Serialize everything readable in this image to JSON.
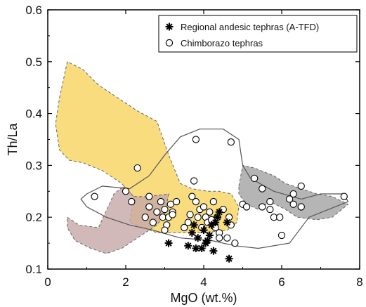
{
  "chart_data": {
    "type": "scatter",
    "title": "",
    "xlabel": "MgO (wt.%)",
    "ylabel": "Th/La",
    "xlim": [
      0,
      8
    ],
    "ylim": [
      0.1,
      0.6
    ],
    "xticks": [
      0,
      2,
      4,
      6,
      8
    ],
    "yticks": [
      0.1,
      0.2,
      0.3,
      0.4,
      0.5,
      0.6
    ],
    "grid": false,
    "legend_position": "top-right",
    "series": [
      {
        "name": "Regional andesic tephras (A-TFD)",
        "marker": "asterisk",
        "color": "#000000",
        "points": [
          [
            3.1,
            0.15
          ],
          [
            3.6,
            0.145
          ],
          [
            3.7,
            0.17
          ],
          [
            3.8,
            0.14
          ],
          [
            3.85,
            0.16
          ],
          [
            3.95,
            0.14
          ],
          [
            4.05,
            0.15
          ],
          [
            4.1,
            0.155
          ],
          [
            4.0,
            0.175
          ],
          [
            4.2,
            0.185
          ],
          [
            4.3,
            0.19
          ],
          [
            4.35,
            0.2
          ],
          [
            4.4,
            0.21
          ],
          [
            4.25,
            0.135
          ],
          [
            4.6,
            0.19
          ],
          [
            4.65,
            0.12
          ],
          [
            3.75,
            0.185
          ],
          [
            4.15,
            0.165
          ]
        ]
      },
      {
        "name": "Chimborazo tephras",
        "marker": "open-circle",
        "color": "#000000",
        "points": [
          [
            1.2,
            0.24
          ],
          [
            2.0,
            0.25
          ],
          [
            2.15,
            0.23
          ],
          [
            2.6,
            0.24
          ],
          [
            2.6,
            0.22
          ],
          [
            2.7,
            0.19
          ],
          [
            2.8,
            0.21
          ],
          [
            2.9,
            0.23
          ],
          [
            2.95,
            0.2
          ],
          [
            3.0,
            0.215
          ],
          [
            3.05,
            0.185
          ],
          [
            3.1,
            0.2
          ],
          [
            3.15,
            0.225
          ],
          [
            3.2,
            0.21
          ],
          [
            3.3,
            0.23
          ],
          [
            3.0,
            0.175
          ],
          [
            2.5,
            0.2
          ],
          [
            2.3,
            0.295
          ],
          [
            3.2,
            0.205
          ],
          [
            3.6,
            0.19
          ],
          [
            3.65,
            0.205
          ],
          [
            3.7,
            0.24
          ],
          [
            3.8,
            0.23
          ],
          [
            3.75,
            0.27
          ],
          [
            3.85,
            0.2
          ],
          [
            3.9,
            0.215
          ],
          [
            3.95,
            0.18
          ],
          [
            4.0,
            0.22
          ],
          [
            4.05,
            0.2
          ],
          [
            4.1,
            0.19
          ],
          [
            4.15,
            0.21
          ],
          [
            4.2,
            0.195
          ],
          [
            4.25,
            0.23
          ],
          [
            4.3,
            0.18
          ],
          [
            4.35,
            0.2
          ],
          [
            4.4,
            0.17
          ],
          [
            4.5,
            0.215
          ],
          [
            4.6,
            0.16
          ],
          [
            4.65,
            0.2
          ],
          [
            4.7,
            0.185
          ],
          [
            4.8,
            0.15
          ],
          [
            3.8,
            0.35
          ],
          [
            4.7,
            0.345
          ],
          [
            5.0,
            0.225
          ],
          [
            5.1,
            0.22
          ],
          [
            5.3,
            0.275
          ],
          [
            5.5,
            0.255
          ],
          [
            5.5,
            0.22
          ],
          [
            5.7,
            0.215
          ],
          [
            5.7,
            0.23
          ],
          [
            5.8,
            0.2
          ],
          [
            5.95,
            0.2
          ],
          [
            6.0,
            0.165
          ],
          [
            6.2,
            0.235
          ],
          [
            6.3,
            0.225
          ],
          [
            6.5,
            0.22
          ],
          [
            6.5,
            0.26
          ],
          [
            6.3,
            0.245
          ],
          [
            7.6,
            0.24
          ],
          [
            4.4,
            0.16
          ],
          [
            3.5,
            0.18
          ]
        ]
      }
    ],
    "fields": [
      {
        "color": "#f7d35e",
        "opacity": 0.8,
        "outline": "dashed",
        "polygon": [
          [
            0.3,
            0.43
          ],
          [
            0.5,
            0.5
          ],
          [
            0.9,
            0.485
          ],
          [
            1.3,
            0.455
          ],
          [
            1.8,
            0.43
          ],
          [
            2.3,
            0.405
          ],
          [
            2.8,
            0.385
          ],
          [
            3.1,
            0.32
          ],
          [
            3.4,
            0.265
          ],
          [
            3.7,
            0.255
          ],
          [
            4.1,
            0.25
          ],
          [
            4.4,
            0.25
          ],
          [
            4.7,
            0.245
          ],
          [
            4.9,
            0.22
          ],
          [
            4.85,
            0.19
          ],
          [
            4.6,
            0.175
          ],
          [
            4.0,
            0.17
          ],
          [
            3.4,
            0.17
          ],
          [
            2.8,
            0.17
          ],
          [
            2.1,
            0.19
          ],
          [
            2.2,
            0.24
          ],
          [
            1.9,
            0.265
          ],
          [
            1.4,
            0.29
          ],
          [
            0.9,
            0.305
          ],
          [
            0.55,
            0.31
          ],
          [
            0.3,
            0.33
          ],
          [
            0.2,
            0.38
          ]
        ]
      },
      {
        "color": "#c7a7a7",
        "opacity": 0.8,
        "outline": "dashed",
        "polygon": [
          [
            0.5,
            0.2
          ],
          [
            0.8,
            0.185
          ],
          [
            1.3,
            0.18
          ],
          [
            1.7,
            0.245
          ],
          [
            1.95,
            0.26
          ],
          [
            2.2,
            0.24
          ],
          [
            2.6,
            0.24
          ],
          [
            3.1,
            0.245
          ],
          [
            3.0,
            0.205
          ],
          [
            2.8,
            0.185
          ],
          [
            2.4,
            0.165
          ],
          [
            1.9,
            0.14
          ],
          [
            1.5,
            0.13
          ],
          [
            1.1,
            0.14
          ],
          [
            0.7,
            0.155
          ],
          [
            0.5,
            0.18
          ]
        ]
      },
      {
        "color": "#a8a8a8",
        "opacity": 0.85,
        "outline": "dashed",
        "polygon": [
          [
            4.9,
            0.26
          ],
          [
            5.0,
            0.3
          ],
          [
            5.3,
            0.295
          ],
          [
            5.8,
            0.28
          ],
          [
            6.1,
            0.265
          ],
          [
            6.5,
            0.255
          ],
          [
            6.9,
            0.245
          ],
          [
            7.3,
            0.24
          ],
          [
            7.7,
            0.225
          ],
          [
            7.3,
            0.2
          ],
          [
            6.9,
            0.195
          ],
          [
            6.4,
            0.2
          ],
          [
            6.1,
            0.215
          ],
          [
            5.7,
            0.23
          ],
          [
            5.4,
            0.215
          ],
          [
            5.1,
            0.225
          ],
          [
            4.9,
            0.245
          ]
        ]
      }
    ],
    "outline": {
      "color": "#555555",
      "points": [
        [
          1.0,
          0.245
        ],
        [
          1.4,
          0.26
        ],
        [
          2.1,
          0.255
        ],
        [
          2.6,
          0.28
        ],
        [
          3.0,
          0.32
        ],
        [
          3.4,
          0.355
        ],
        [
          3.9,
          0.37
        ],
        [
          4.5,
          0.37
        ],
        [
          4.9,
          0.35
        ],
        [
          5.0,
          0.3
        ],
        [
          5.2,
          0.275
        ],
        [
          5.8,
          0.25
        ],
        [
          6.5,
          0.235
        ],
        [
          7.0,
          0.245
        ],
        [
          7.6,
          0.245
        ],
        [
          7.7,
          0.23
        ],
        [
          6.7,
          0.2
        ],
        [
          6.2,
          0.15
        ],
        [
          5.4,
          0.14
        ],
        [
          4.8,
          0.145
        ],
        [
          4.2,
          0.155
        ],
        [
          3.4,
          0.16
        ],
        [
          2.7,
          0.175
        ],
        [
          2.1,
          0.185
        ],
        [
          1.5,
          0.2
        ],
        [
          1.0,
          0.22
        ],
        [
          0.85,
          0.235
        ]
      ]
    }
  }
}
